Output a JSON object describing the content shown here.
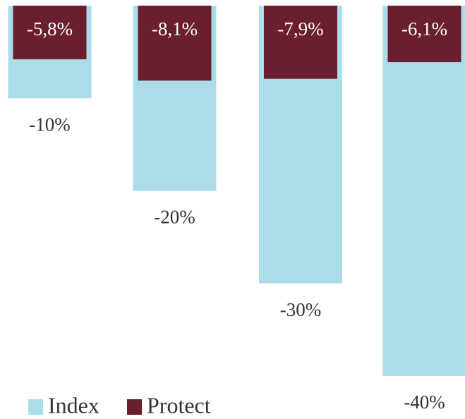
{
  "chart_data": {
    "type": "bar",
    "categories": [
      null,
      null,
      null,
      null
    ],
    "series": [
      {
        "name": "Index",
        "color": "#abdcea",
        "values": [
          -10,
          -20,
          -30,
          -40
        ],
        "value_labels": [
          "-10%",
          "-20%",
          "-30%",
          "-40%"
        ]
      },
      {
        "name": "Protect",
        "color": "#6b1e2d",
        "values": [
          -5.8,
          -8.1,
          -7.9,
          -6.1
        ],
        "value_labels": [
          "-5,8%",
          "-8,1%",
          "-7,9%",
          "-6,1%"
        ]
      }
    ],
    "ylim": [
      -40,
      0
    ]
  }
}
